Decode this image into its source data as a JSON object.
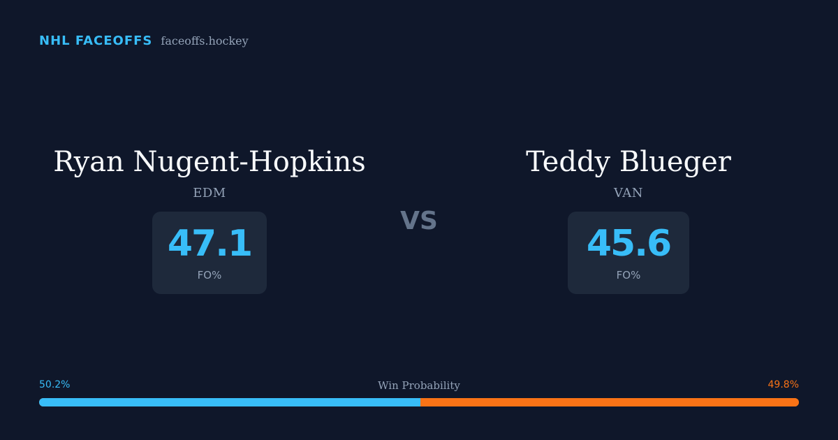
{
  "brand": {
    "name": "NHL FACEOFFS",
    "url": "faceoffs.hockey"
  },
  "player_left": {
    "name": "Ryan Nugent-Hopkins",
    "team": "EDM",
    "stat_value": "47.1",
    "stat_label": "FO%"
  },
  "vs_label": "VS",
  "player_right": {
    "name": "Teddy Blueger",
    "team": "VAN",
    "stat_value": "45.6",
    "stat_label": "FO%"
  },
  "win_probability": {
    "title": "Win Probability",
    "left_label": "50.2%",
    "right_label": "49.8%",
    "left_value": 50.2,
    "right_value": 49.8
  },
  "colors": {
    "background": "#0f172a",
    "accent_left": "#38bdf8",
    "accent_right": "#f97316",
    "card": "#1e293b"
  }
}
